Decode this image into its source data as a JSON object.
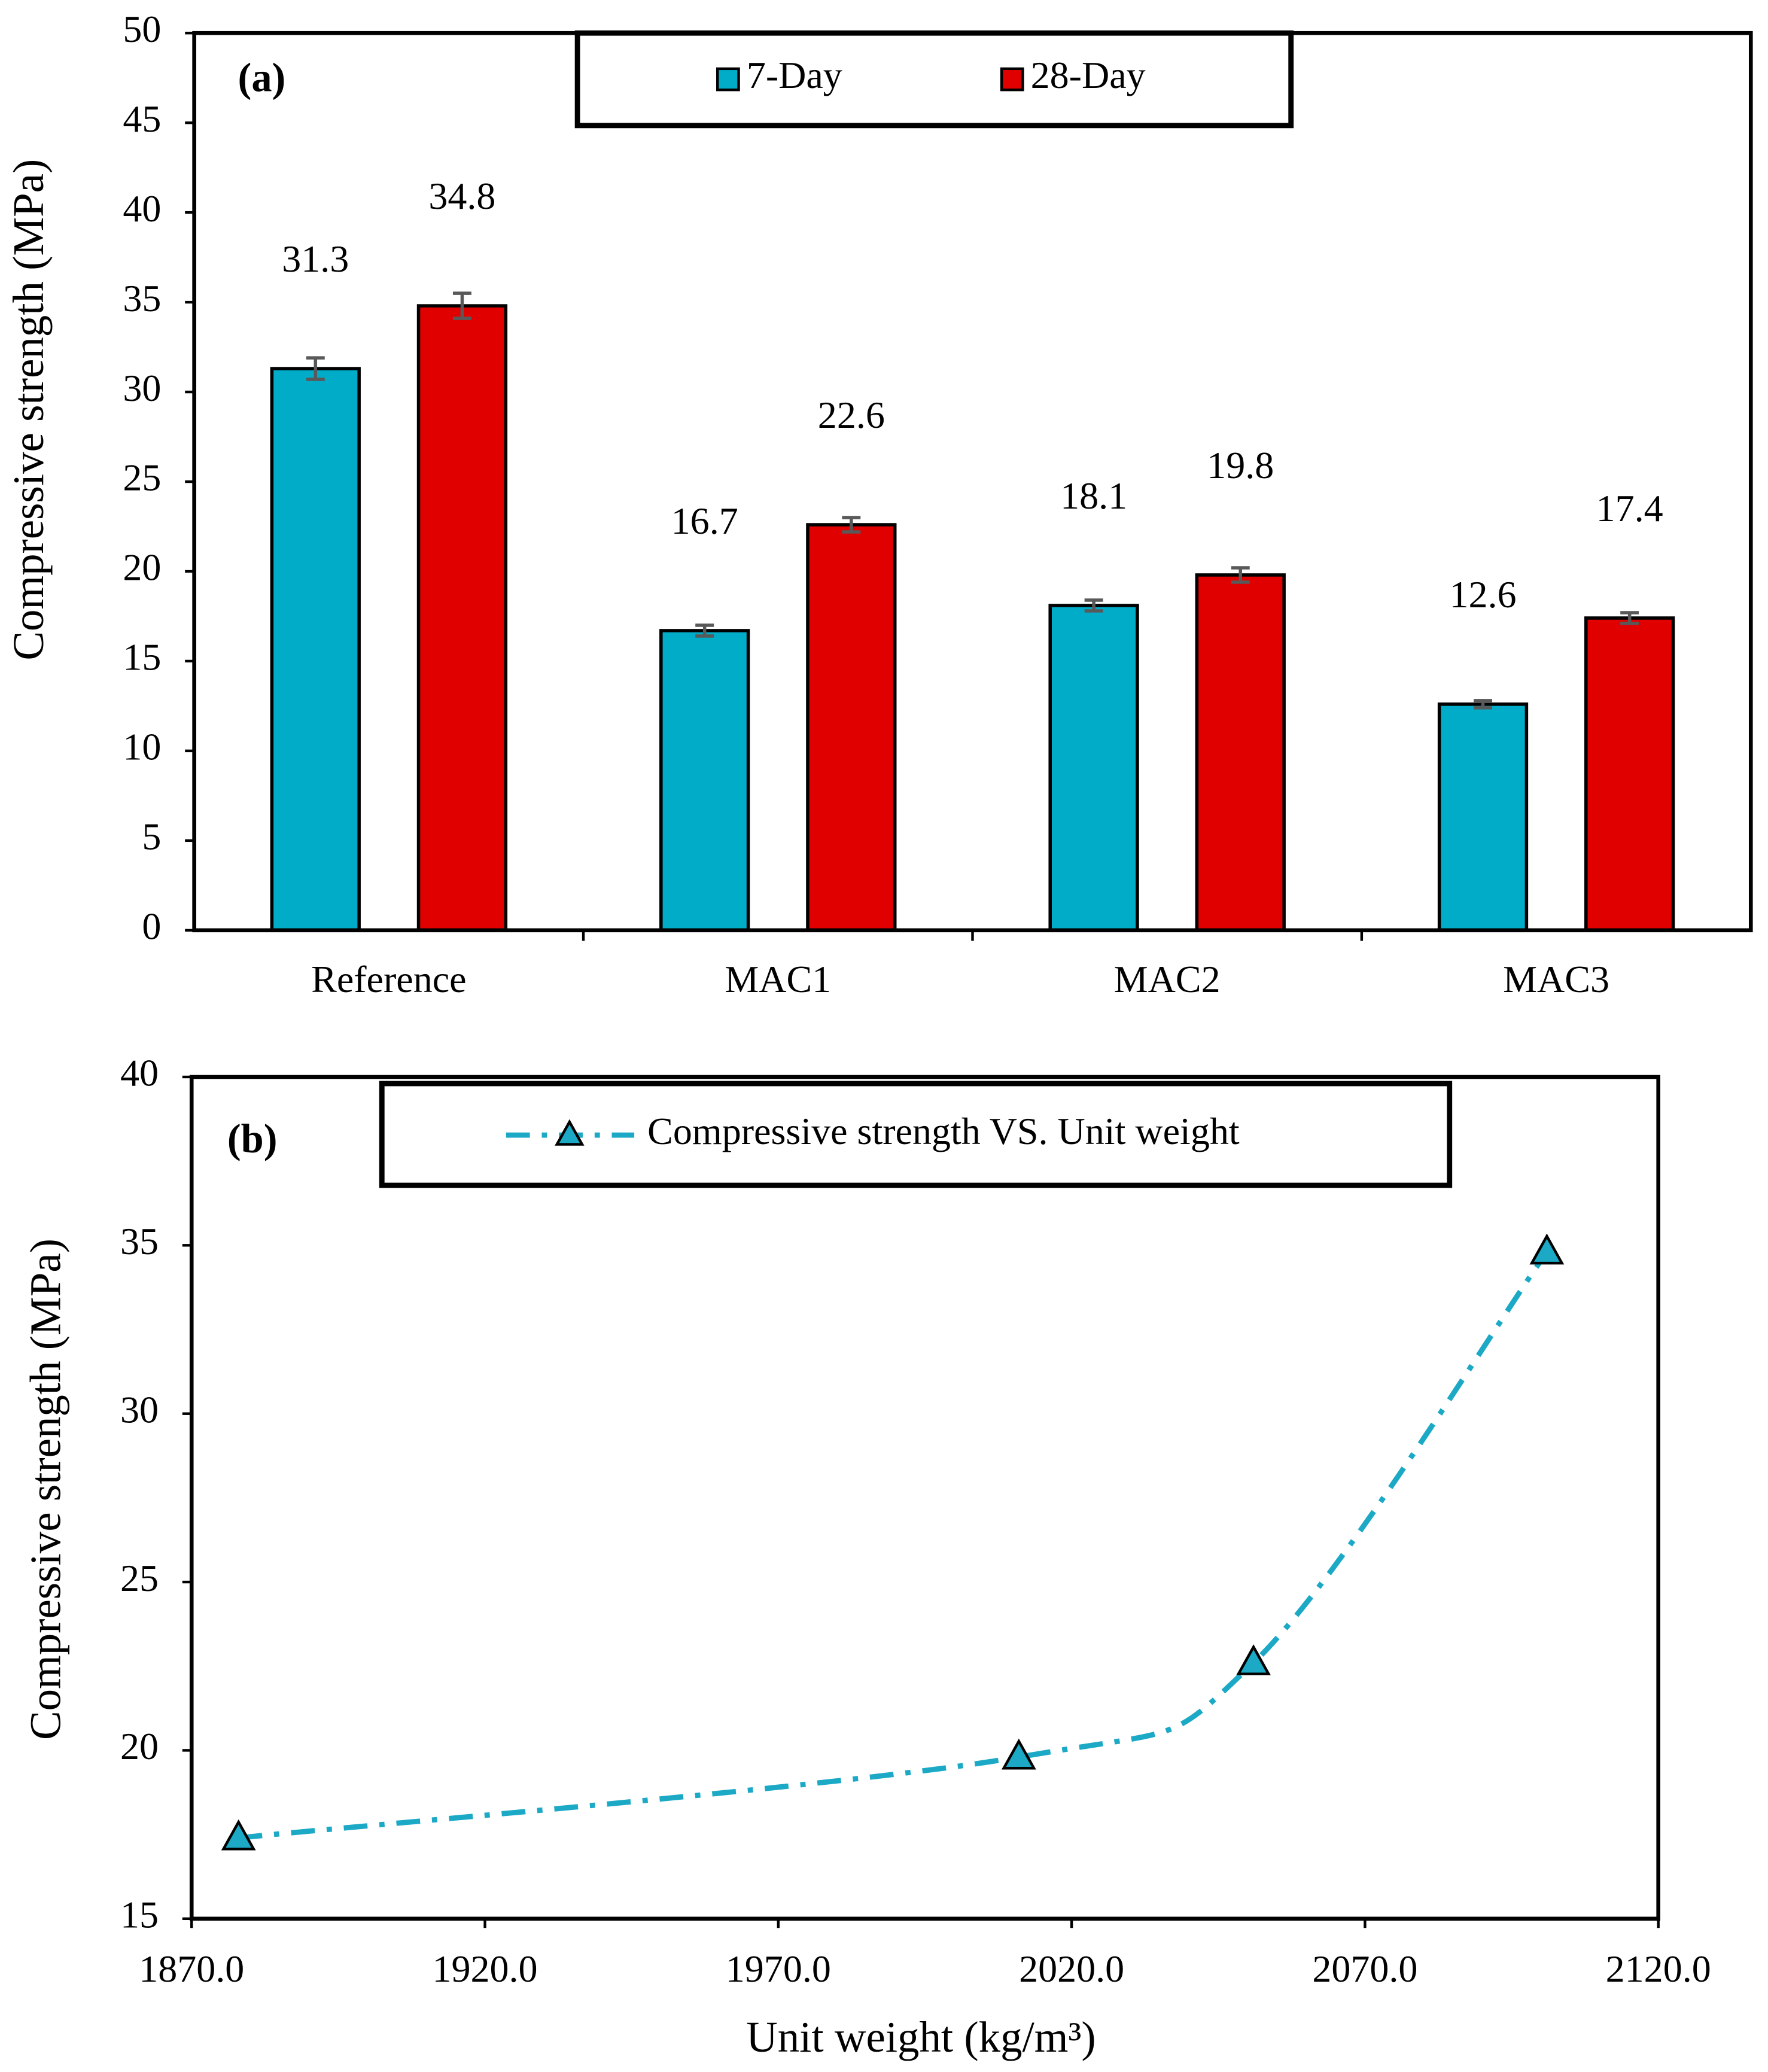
{
  "chart_data": [
    {
      "type": "bar",
      "annotation": "(a)",
      "y_label": "Compressive strength (MPa)",
      "categories": [
        "Reference",
        "MAC1",
        "MAC2",
        "MAC3"
      ],
      "series": [
        {
          "name": "7-Day",
          "color": "#00acc8",
          "values": [
            31.3,
            16.7,
            18.1,
            12.6
          ],
          "errors": [
            0.6,
            0.3,
            0.3,
            0.2
          ]
        },
        {
          "name": "28-Day",
          "color": "#e00000",
          "values": [
            34.8,
            22.6,
            19.8,
            17.4
          ],
          "errors": [
            0.7,
            0.4,
            0.4,
            0.3
          ]
        }
      ],
      "ylim": [
        0,
        50
      ],
      "yticks": [
        0,
        5,
        10,
        15,
        20,
        25,
        30,
        35,
        40,
        45,
        50
      ],
      "grid": false,
      "legend": "top"
    },
    {
      "type": "line",
      "annotation": "(b)",
      "y_label": "Compressive strength (MPa)",
      "x_label": "Unit weight (kg/m³)",
      "series": [
        {
          "name": "Compressive strength VS. Unit weight",
          "color": "#1ba9c6",
          "marker": "triangle",
          "x": [
            1878,
            2011,
            2051,
            2101
          ],
          "values": [
            17.4,
            19.8,
            22.6,
            34.8
          ]
        }
      ],
      "xlim": [
        1870,
        2120
      ],
      "xticks": [
        {
          "value": 1870,
          "label": "1870.0"
        },
        {
          "value": 1920,
          "label": "1920.0"
        },
        {
          "value": 1970,
          "label": "1970.0"
        },
        {
          "value": 2020,
          "label": "2020.0"
        },
        {
          "value": 2070,
          "label": "2070.0"
        },
        {
          "value": 2120,
          "label": "2120.0"
        }
      ],
      "ylim": [
        15,
        40
      ],
      "yticks": [
        15,
        20,
        25,
        30,
        35,
        40
      ],
      "grid": false,
      "legend": "top"
    }
  ]
}
